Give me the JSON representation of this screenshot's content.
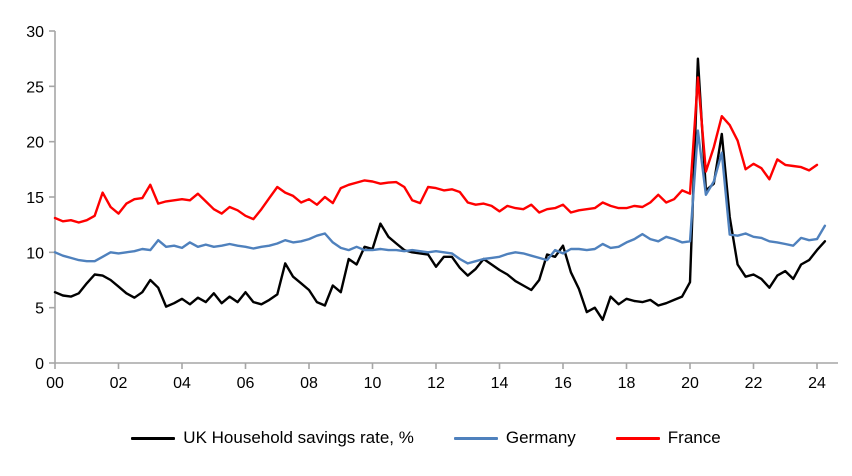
{
  "chart_data": {
    "type": "line",
    "title": "",
    "xlabel": "",
    "ylabel": "",
    "x_unit": "year (quarterly data)",
    "x_start_year": 2000,
    "points_per_year": 4,
    "x_tick_step_years": 2,
    "x_tick_labels": [
      "00",
      "02",
      "04",
      "06",
      "08",
      "10",
      "12",
      "14",
      "16",
      "18",
      "20",
      "22",
      "24"
    ],
    "y_ticks": [
      0,
      5,
      10,
      15,
      20,
      25,
      30
    ],
    "ylim": [
      0,
      30
    ],
    "grid": false,
    "legend_position": "bottom",
    "axis_color": "#a6a6a6",
    "series": [
      {
        "name": "UK Household savings rate, %",
        "color": "#000000",
        "values": [
          6.4,
          6.1,
          6.0,
          6.3,
          7.2,
          8.0,
          7.9,
          7.5,
          6.9,
          6.3,
          5.9,
          6.4,
          7.5,
          6.8,
          5.1,
          5.4,
          5.8,
          5.3,
          5.9,
          5.5,
          6.3,
          5.4,
          6.0,
          5.5,
          6.4,
          5.5,
          5.3,
          5.7,
          6.2,
          9.0,
          7.8,
          7.2,
          6.6,
          5.5,
          5.2,
          7.0,
          6.4,
          9.4,
          8.9,
          10.5,
          10.3,
          12.6,
          11.4,
          10.8,
          10.2,
          10.0,
          9.9,
          9.8,
          8.7,
          9.6,
          9.6,
          8.6,
          7.9,
          8.5,
          9.4,
          8.9,
          8.4,
          8.0,
          7.4,
          7.0,
          6.6,
          7.5,
          9.8,
          9.6,
          10.6,
          8.2,
          6.7,
          4.6,
          5.0,
          3.9,
          6.0,
          5.3,
          5.8,
          5.6,
          5.5,
          5.7,
          5.2,
          5.4,
          5.7,
          6.0,
          7.3,
          27.5,
          15.6,
          16.2,
          20.7,
          13.2,
          8.9,
          7.8,
          8.0,
          7.6,
          6.8,
          7.9,
          8.3,
          7.6,
          8.9,
          9.3,
          10.2,
          11.0
        ]
      },
      {
        "name": "Germany",
        "color": "#4f81bd",
        "values": [
          10.0,
          9.7,
          9.5,
          9.3,
          9.2,
          9.2,
          9.6,
          10.0,
          9.9,
          10.0,
          10.1,
          10.3,
          10.2,
          11.1,
          10.5,
          10.6,
          10.4,
          10.9,
          10.5,
          10.7,
          10.5,
          10.6,
          10.75,
          10.6,
          10.5,
          10.35,
          10.5,
          10.6,
          10.8,
          11.1,
          10.9,
          11.0,
          11.2,
          11.5,
          11.7,
          10.9,
          10.4,
          10.2,
          10.5,
          10.2,
          10.2,
          10.3,
          10.2,
          10.2,
          10.1,
          10.2,
          10.1,
          10.0,
          10.1,
          10.0,
          9.9,
          9.4,
          9.0,
          9.2,
          9.4,
          9.5,
          9.6,
          9.85,
          10.0,
          9.9,
          9.7,
          9.5,
          9.3,
          10.2,
          9.9,
          10.3,
          10.3,
          10.2,
          10.3,
          10.75,
          10.4,
          10.5,
          10.9,
          11.2,
          11.65,
          11.2,
          11.0,
          11.4,
          11.2,
          10.9,
          11.0,
          21.0,
          15.2,
          16.4,
          19.0,
          11.6,
          11.5,
          11.7,
          11.4,
          11.3,
          11.0,
          10.9,
          10.75,
          10.6,
          11.3,
          11.1,
          11.2,
          12.4
        ]
      },
      {
        "name": "France",
        "color": "#ff0000",
        "values": [
          13.1,
          12.8,
          12.9,
          12.7,
          12.9,
          13.3,
          15.4,
          14.1,
          13.5,
          14.4,
          14.8,
          14.9,
          16.1,
          14.4,
          14.6,
          14.7,
          14.8,
          14.7,
          15.3,
          14.6,
          13.9,
          13.5,
          14.1,
          13.8,
          13.3,
          13.0,
          13.9,
          14.9,
          15.9,
          15.4,
          15.1,
          14.5,
          14.8,
          14.3,
          15.0,
          14.45,
          15.8,
          16.1,
          16.3,
          16.5,
          16.4,
          16.2,
          16.3,
          16.35,
          15.9,
          14.7,
          14.45,
          15.9,
          15.8,
          15.6,
          15.7,
          15.45,
          14.5,
          14.3,
          14.4,
          14.2,
          13.7,
          14.2,
          14.0,
          13.9,
          14.3,
          13.6,
          13.9,
          14.0,
          14.3,
          13.6,
          13.8,
          13.9,
          14.0,
          14.5,
          14.2,
          14.0,
          14.0,
          14.2,
          14.1,
          14.5,
          15.2,
          14.5,
          14.8,
          15.6,
          15.3,
          25.8,
          17.3,
          19.5,
          22.3,
          21.5,
          20.1,
          17.5,
          18.0,
          17.6,
          16.6,
          18.4,
          17.9,
          17.8,
          17.7,
          17.4,
          17.9
        ]
      }
    ]
  },
  "legend": {
    "items": [
      {
        "label": "UK Household savings rate, %"
      },
      {
        "label": "Germany"
      },
      {
        "label": "France"
      }
    ]
  }
}
